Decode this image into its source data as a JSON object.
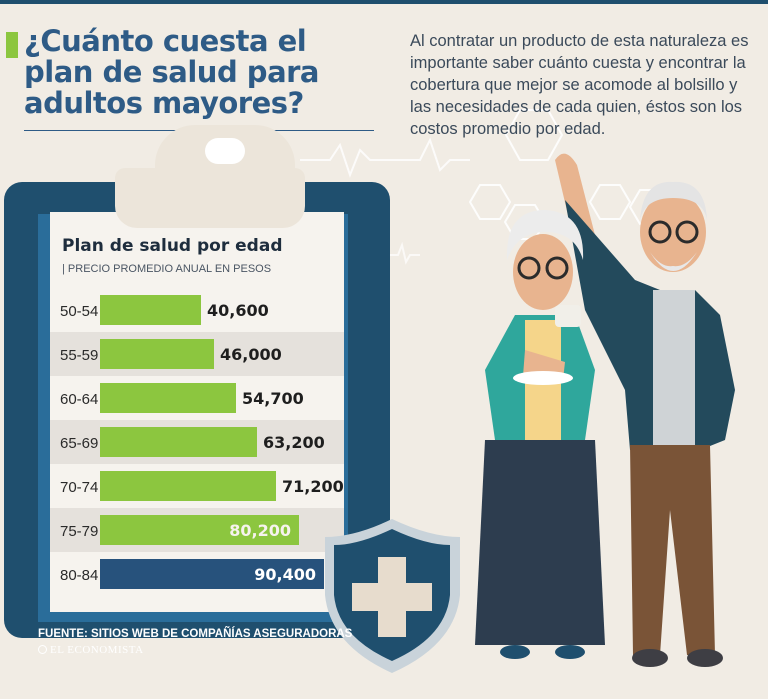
{
  "headline": "¿Cuánto cuesta el plan de salud para adultos mayores?",
  "intro": "Al contratar un producto de esta naturaleza es importante saber cuánto cuesta y encontrar la cobertura que mejor se acomode al bolsillo y las necesidades de cada quien, éstos son los costos promedio por edad.",
  "footer": {
    "source": "FUENTE: SITIOS WEB DE COMPAÑÍAS ASEGURADORAS",
    "brand": "EL ECONOMISTA"
  },
  "colors": {
    "title": "#2e5b86",
    "bar": "#8cc63f",
    "bar_highlight": "#27527c",
    "row_alt": "#e5e1dc",
    "row_plain": "#f6f3ee",
    "clipboard": "#1f4f6e"
  },
  "icons": [
    "clipboard-icon",
    "medical-shield-icon",
    "elderly-couple-illustration",
    "hexagon-decoration",
    "heartbeat-line-decoration"
  ],
  "chart_data": {
    "type": "bar",
    "orientation": "horizontal",
    "title": "Plan de salud por edad",
    "subtitle": "| PRECIO PROMEDIO ANUAL EN PESOS",
    "categories": [
      "50-54",
      "55-59",
      "60-64",
      "65-69",
      "70-74",
      "75-79",
      "80-84"
    ],
    "values": [
      40600,
      46000,
      54700,
      63200,
      71200,
      80200,
      90400
    ],
    "value_labels": [
      "40,600",
      "46,000",
      "54,700",
      "63,200",
      "71,200",
      "80,200",
      "90,400"
    ],
    "xlim": [
      0,
      90400
    ],
    "grid": false,
    "legend": "none"
  }
}
